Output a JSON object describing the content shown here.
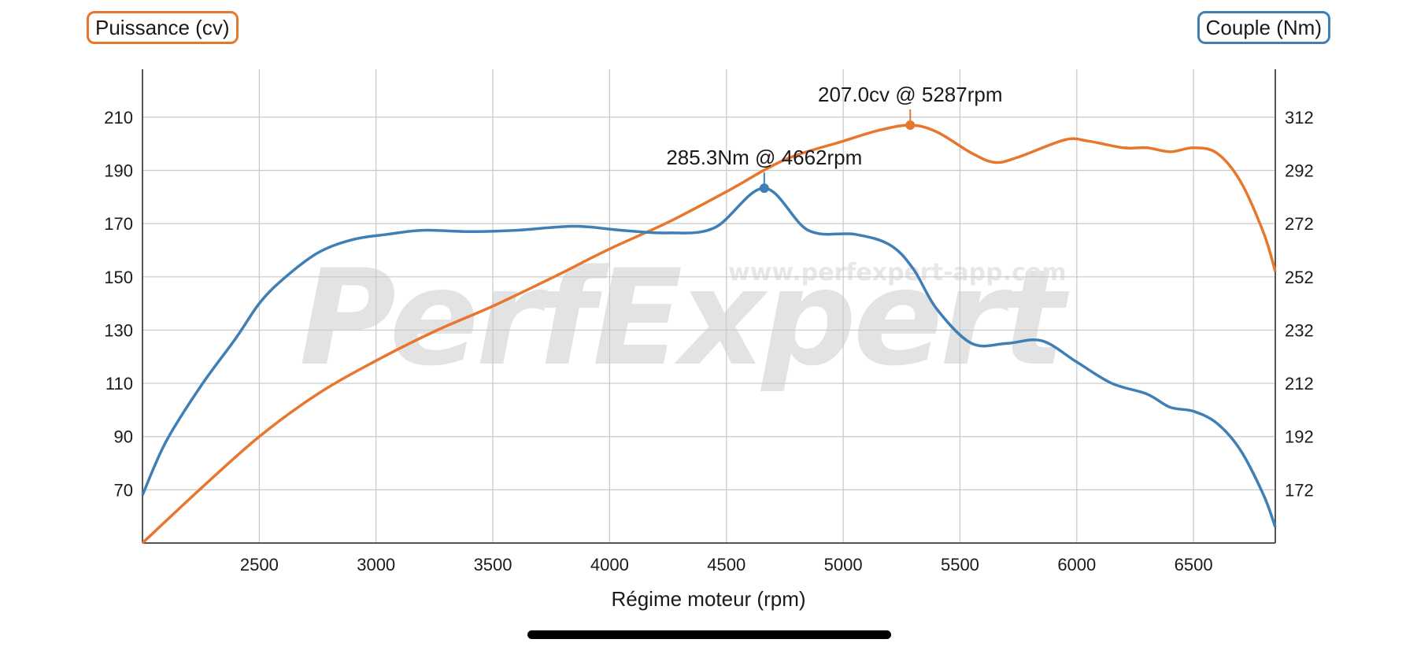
{
  "legend": {
    "power_label": "Puissance (cv)",
    "torque_label": "Couple (Nm)"
  },
  "watermark": {
    "logo_text": "PerfExpert",
    "url_text": "www.perfexpert-app.com"
  },
  "colors": {
    "power": "#e8772e",
    "torque": "#3f7fb5",
    "grid": "#c8c8c8",
    "axis": "#555555"
  },
  "chart_data": {
    "type": "line",
    "title": "",
    "xlabel": "Régime moteur (rpm)",
    "ylabel_left": "Puissance (cv)",
    "ylabel_right": "Couple (Nm)",
    "xlim": [
      2000,
      6850
    ],
    "ylim_left": [
      50,
      228
    ],
    "ylim_right": [
      152,
      330
    ],
    "x_ticks": [
      2500,
      3000,
      3500,
      4000,
      4500,
      5000,
      5500,
      6000,
      6500
    ],
    "y_ticks_left": [
      70,
      90,
      110,
      130,
      150,
      170,
      190,
      210
    ],
    "y_ticks_right": [
      172,
      192,
      212,
      232,
      252,
      272,
      292,
      312
    ],
    "grid": true,
    "legend_position": "top corners",
    "series": [
      {
        "name": "Puissance (cv)",
        "axis": "left",
        "x": [
          2000,
          2250,
          2500,
          2750,
          3000,
          3250,
          3500,
          3750,
          4000,
          4250,
          4500,
          4750,
          5000,
          5150,
          5287,
          5400,
          5550,
          5650,
          5750,
          5950,
          6050,
          6200,
          6300,
          6400,
          6500,
          6600,
          6700,
          6800,
          6850
        ],
        "values": [
          50,
          70.5,
          90,
          106,
          118.5,
          129.5,
          139,
          149.5,
          160.5,
          170.5,
          182,
          194,
          201,
          205,
          207,
          204.5,
          196.5,
          193,
          195,
          201.5,
          201,
          198.5,
          198.5,
          197,
          198.5,
          196.5,
          186,
          166.5,
          152
        ]
      },
      {
        "name": "Couple (Nm)",
        "axis": "right",
        "x": [
          2000,
          2100,
          2250,
          2400,
          2500,
          2600,
          2750,
          2900,
          3050,
          3200,
          3400,
          3600,
          3850,
          4050,
          4250,
          4450,
          4662,
          4850,
          5050,
          5200,
          5300,
          5400,
          5550,
          5700,
          5850,
          6000,
          6150,
          6300,
          6400,
          6500,
          6600,
          6700,
          6800,
          6850
        ],
        "values": [
          170,
          190,
          211,
          229,
          242,
          251,
          261,
          266,
          268,
          269.5,
          269,
          269.5,
          271,
          269.5,
          268.5,
          270.5,
          285.3,
          269.5,
          268,
          264,
          255,
          240,
          227,
          227,
          228,
          220,
          212,
          208,
          203,
          201.5,
          197,
          187,
          170,
          158
        ]
      }
    ],
    "annotations": [
      {
        "series": "Puissance (cv)",
        "x": 5287,
        "y": 207.0,
        "text": "207.0cv @ 5287rpm"
      },
      {
        "series": "Couple (Nm)",
        "x": 4662,
        "y": 285.3,
        "text": "285.3Nm @ 4662rpm"
      }
    ]
  }
}
